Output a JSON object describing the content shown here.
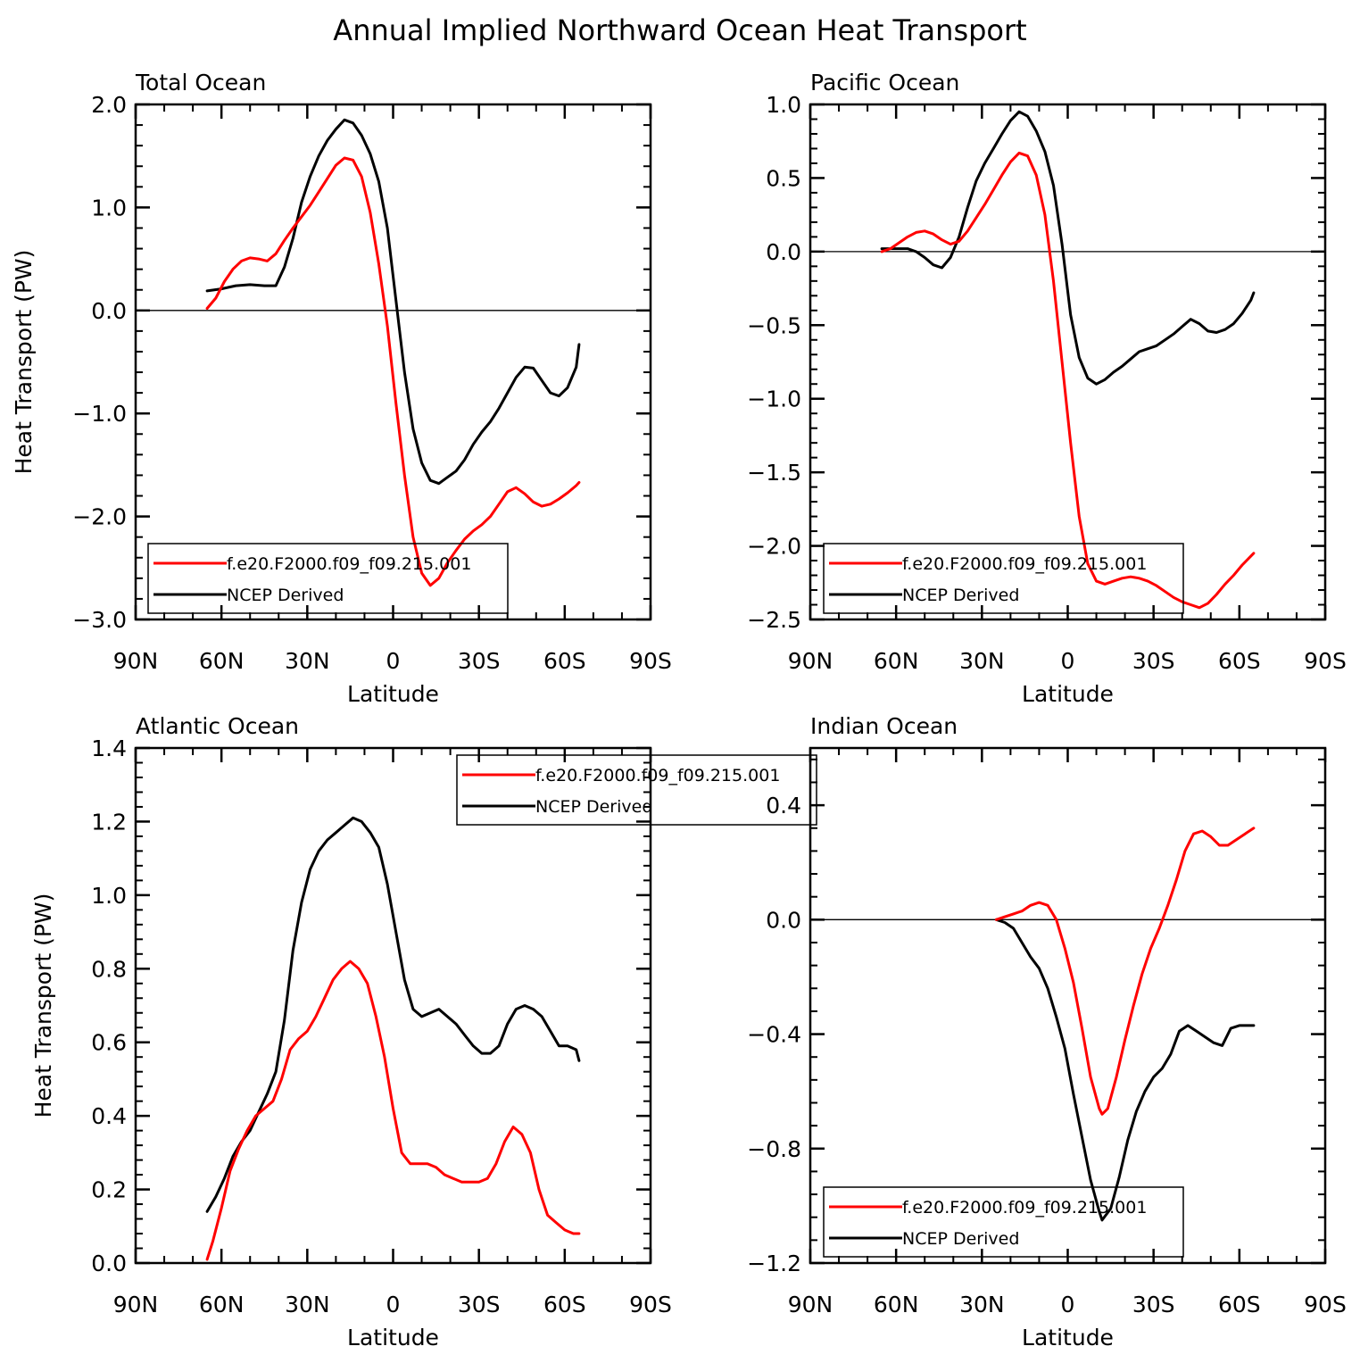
{
  "figure_title": "Annual Implied Northward Ocean Heat Transport",
  "colors": {
    "model": "#ff0000",
    "obs": "#000000",
    "axis": "#000000"
  },
  "legend_entries": [
    "f.e20.F2000.f09_f09.215.001",
    "NCEP Derived"
  ],
  "chart_data": [
    {
      "type": "line",
      "title": "Total Ocean",
      "xlabel": "Latitude",
      "ylabel": "Heat Transport (PW)",
      "xlim": [
        90,
        -90
      ],
      "ylim": [
        -3.0,
        2.0
      ],
      "x_ticks": [
        90,
        60,
        30,
        0,
        -30,
        -60,
        -90
      ],
      "x_tick_labels": [
        "90N",
        "60N",
        "30N",
        "0",
        "30S",
        "60S",
        "90S"
      ],
      "y_ticks": [
        2.0,
        1.0,
        0.0,
        -1.0,
        -2.0,
        -3.0
      ],
      "y_tick_labels": [
        "2.0",
        "1.0",
        "0.0",
        "−1.0",
        "−2.0",
        "−3.0"
      ],
      "y_minor": 0.2,
      "legend_position": "bottom-left",
      "series": [
        {
          "name": "f.e20.F2000.f09_f09.215.001",
          "color": "#ff0000",
          "x": [
            65,
            62,
            59,
            56,
            53,
            50,
            47,
            44,
            41,
            38,
            35,
            32,
            29,
            26,
            23,
            20,
            17,
            14,
            11,
            8,
            5,
            2,
            -1,
            -4,
            -7,
            -10,
            -13,
            -16,
            -19,
            -22,
            -25,
            -28,
            -31,
            -34,
            -37,
            -40,
            -43,
            -46,
            -49,
            -52,
            -55,
            -58,
            -61,
            -64,
            -65
          ],
          "y": [
            0.02,
            0.12,
            0.28,
            0.4,
            0.48,
            0.51,
            0.5,
            0.48,
            0.55,
            0.68,
            0.8,
            0.91,
            1.02,
            1.15,
            1.28,
            1.41,
            1.48,
            1.46,
            1.3,
            0.95,
            0.45,
            -0.15,
            -0.9,
            -1.6,
            -2.2,
            -2.55,
            -2.67,
            -2.6,
            -2.45,
            -2.33,
            -2.22,
            -2.14,
            -2.08,
            -2.0,
            -1.88,
            -1.76,
            -1.72,
            -1.78,
            -1.86,
            -1.9,
            -1.88,
            -1.83,
            -1.77,
            -1.7,
            -1.67
          ]
        },
        {
          "name": "NCEP Derived",
          "color": "#000000",
          "x": [
            65,
            60,
            55,
            50,
            45,
            41,
            38,
            35,
            32,
            29,
            26,
            23,
            20,
            17,
            14,
            11,
            8,
            5,
            2,
            -1,
            -4,
            -7,
            -10,
            -13,
            -16,
            -19,
            -22,
            -25,
            -28,
            -31,
            -34,
            -37,
            -40,
            -43,
            -46,
            -49,
            -52,
            -55,
            -58,
            -61,
            -64,
            -65
          ],
          "y": [
            0.19,
            0.21,
            0.24,
            0.25,
            0.24,
            0.24,
            0.42,
            0.7,
            1.05,
            1.3,
            1.5,
            1.65,
            1.76,
            1.85,
            1.82,
            1.7,
            1.52,
            1.25,
            0.8,
            0.1,
            -0.6,
            -1.15,
            -1.48,
            -1.65,
            -1.68,
            -1.62,
            -1.56,
            -1.45,
            -1.3,
            -1.18,
            -1.08,
            -0.95,
            -0.8,
            -0.65,
            -0.55,
            -0.56,
            -0.68,
            -0.8,
            -0.83,
            -0.75,
            -0.55,
            -0.33
          ]
        }
      ]
    },
    {
      "type": "line",
      "title": "Pacific Ocean",
      "xlabel": "Latitude",
      "ylabel": "",
      "xlim": [
        90,
        -90
      ],
      "ylim": [
        -2.5,
        1.0
      ],
      "x_ticks": [
        90,
        60,
        30,
        0,
        -30,
        -60,
        -90
      ],
      "x_tick_labels": [
        "90N",
        "60N",
        "30N",
        "0",
        "30S",
        "60S",
        "90S"
      ],
      "y_ticks": [
        1.0,
        0.5,
        0.0,
        -0.5,
        -1.0,
        -1.5,
        -2.0,
        -2.5
      ],
      "y_tick_labels": [
        "1.0",
        "0.5",
        "0.0",
        "−0.5",
        "−1.0",
        "−1.5",
        "−2.0",
        "−2.5"
      ],
      "y_minor": 0.1,
      "legend_position": "bottom-left",
      "series": [
        {
          "name": "f.e20.F2000.f09_f09.215.001",
          "color": "#ff0000",
          "x": [
            65,
            62,
            59,
            56,
            53,
            50,
            47,
            44,
            41,
            38,
            35,
            32,
            29,
            26,
            23,
            20,
            17,
            14,
            11,
            8,
            5,
            2,
            -1,
            -4,
            -7,
            -10,
            -13,
            -16,
            -19,
            -22,
            -25,
            -28,
            -31,
            -34,
            -37,
            -40,
            -43,
            -46,
            -49,
            -52,
            -55,
            -58,
            -61,
            -64,
            -65
          ],
          "y": [
            0.0,
            0.02,
            0.06,
            0.1,
            0.13,
            0.14,
            0.12,
            0.08,
            0.05,
            0.07,
            0.14,
            0.23,
            0.32,
            0.42,
            0.52,
            0.61,
            0.67,
            0.65,
            0.52,
            0.25,
            -0.2,
            -0.75,
            -1.3,
            -1.8,
            -2.12,
            -2.24,
            -2.26,
            -2.24,
            -2.22,
            -2.21,
            -2.22,
            -2.24,
            -2.27,
            -2.31,
            -2.35,
            -2.38,
            -2.4,
            -2.42,
            -2.39,
            -2.33,
            -2.26,
            -2.2,
            -2.13,
            -2.07,
            -2.05
          ]
        },
        {
          "name": "NCEP Derived",
          "color": "#000000",
          "x": [
            65,
            62,
            59,
            56,
            53,
            50,
            47,
            44,
            41,
            38,
            35,
            32,
            29,
            26,
            23,
            20,
            17,
            14,
            11,
            8,
            5,
            2,
            -1,
            -4,
            -7,
            -10,
            -13,
            -16,
            -19,
            -22,
            -25,
            -28,
            -31,
            -34,
            -37,
            -40,
            -43,
            -46,
            -49,
            -52,
            -55,
            -58,
            -61,
            -64,
            -65
          ],
          "y": [
            0.02,
            0.02,
            0.02,
            0.02,
            0.0,
            -0.04,
            -0.09,
            -0.11,
            -0.04,
            0.1,
            0.3,
            0.48,
            0.6,
            0.7,
            0.8,
            0.89,
            0.95,
            0.92,
            0.82,
            0.68,
            0.45,
            0.05,
            -0.43,
            -0.72,
            -0.86,
            -0.9,
            -0.87,
            -0.82,
            -0.78,
            -0.73,
            -0.68,
            -0.66,
            -0.64,
            -0.6,
            -0.56,
            -0.51,
            -0.46,
            -0.49,
            -0.54,
            -0.55,
            -0.53,
            -0.49,
            -0.42,
            -0.33,
            -0.28
          ]
        }
      ]
    },
    {
      "type": "line",
      "title": "Atlantic Ocean",
      "xlabel": "Latitude",
      "ylabel": "Heat Transport (PW)",
      "xlim": [
        90,
        -90
      ],
      "ylim": [
        0.0,
        1.4
      ],
      "x_ticks": [
        90,
        60,
        30,
        0,
        -30,
        -60,
        -90
      ],
      "x_tick_labels": [
        "90N",
        "60N",
        "30N",
        "0",
        "30S",
        "60S",
        "90S"
      ],
      "y_ticks": [
        1.4,
        1.2,
        1.0,
        0.8,
        0.6,
        0.4,
        0.2,
        0.0
      ],
      "y_tick_labels": [
        "1.4",
        "1.2",
        "1.0",
        "0.8",
        "0.6",
        "0.4",
        "0.2",
        "0.0"
      ],
      "y_minor": 0.04,
      "legend_position": "top-right",
      "series": [
        {
          "name": "f.e20.F2000.f09_f09.215.001",
          "color": "#ff0000",
          "x": [
            65,
            63,
            60,
            57,
            54,
            51,
            48,
            45,
            42,
            39,
            36,
            33,
            30,
            27,
            24,
            21,
            18,
            15,
            12,
            9,
            6,
            3,
            0,
            -3,
            -6,
            -9,
            -12,
            -15,
            -18,
            -21,
            -24,
            -27,
            -30,
            -33,
            -36,
            -39,
            -42,
            -45,
            -48,
            -51,
            -54,
            -57,
            -60,
            -63,
            -65
          ],
          "y": [
            0.01,
            0.06,
            0.15,
            0.25,
            0.31,
            0.36,
            0.4,
            0.42,
            0.44,
            0.5,
            0.58,
            0.61,
            0.63,
            0.67,
            0.72,
            0.77,
            0.8,
            0.82,
            0.8,
            0.76,
            0.67,
            0.56,
            0.42,
            0.3,
            0.27,
            0.27,
            0.27,
            0.26,
            0.24,
            0.23,
            0.22,
            0.22,
            0.22,
            0.23,
            0.27,
            0.33,
            0.37,
            0.35,
            0.3,
            0.2,
            0.13,
            0.11,
            0.09,
            0.08,
            0.08
          ]
        },
        {
          "name": "NCEP Derived",
          "color": "#000000",
          "x": [
            65,
            62,
            59,
            56,
            53,
            50,
            47,
            44,
            41,
            38,
            35,
            32,
            29,
            26,
            23,
            20,
            17,
            14,
            11,
            8,
            5,
            2,
            -1,
            -4,
            -7,
            -10,
            -13,
            -16,
            -19,
            -22,
            -25,
            -28,
            -31,
            -34,
            -37,
            -40,
            -43,
            -46,
            -49,
            -52,
            -55,
            -58,
            -61,
            -64,
            -65
          ],
          "y": [
            0.14,
            0.18,
            0.23,
            0.29,
            0.33,
            0.36,
            0.41,
            0.46,
            0.52,
            0.66,
            0.85,
            0.98,
            1.07,
            1.12,
            1.15,
            1.17,
            1.19,
            1.21,
            1.2,
            1.17,
            1.13,
            1.03,
            0.9,
            0.77,
            0.69,
            0.67,
            0.68,
            0.69,
            0.67,
            0.65,
            0.62,
            0.59,
            0.57,
            0.57,
            0.59,
            0.65,
            0.69,
            0.7,
            0.69,
            0.67,
            0.63,
            0.59,
            0.59,
            0.58,
            0.55
          ]
        }
      ]
    },
    {
      "type": "line",
      "title": "Indian Ocean",
      "xlabel": "Latitude",
      "ylabel": "",
      "xlim": [
        90,
        -90
      ],
      "ylim": [
        -1.2,
        0.6
      ],
      "x_ticks": [
        90,
        60,
        30,
        0,
        -30,
        -60,
        -90
      ],
      "x_tick_labels": [
        "90N",
        "60N",
        "30N",
        "0",
        "30S",
        "60S",
        "90S"
      ],
      "y_ticks": [
        0.4,
        0.0,
        -0.4,
        -0.8,
        -1.2
      ],
      "y_tick_labels": [
        "0.4",
        "0.0",
        "−0.4",
        "−0.8",
        "−1.2"
      ],
      "y_minor": 0.08,
      "legend_position": "bottom-left",
      "series": [
        {
          "name": "f.e20.F2000.f09_f09.215.001",
          "color": "#ff0000",
          "x": [
            25,
            22,
            19,
            16,
            13,
            10,
            7,
            4,
            1,
            -2,
            -5,
            -8,
            -11,
            -12,
            -14,
            -17,
            -20,
            -23,
            -26,
            -29,
            -32,
            -35,
            -38,
            -41,
            -44,
            -47,
            -50,
            -53,
            -56,
            -59,
            -62,
            -65
          ],
          "y": [
            0.0,
            0.01,
            0.02,
            0.03,
            0.05,
            0.06,
            0.05,
            0.0,
            -0.1,
            -0.22,
            -0.38,
            -0.55,
            -0.66,
            -0.68,
            -0.66,
            -0.55,
            -0.42,
            -0.3,
            -0.19,
            -0.1,
            -0.03,
            0.05,
            0.14,
            0.24,
            0.3,
            0.31,
            0.29,
            0.26,
            0.26,
            0.28,
            0.3,
            0.32
          ]
        },
        {
          "name": "NCEP Derived",
          "color": "#000000",
          "x": [
            25,
            22,
            19,
            16,
            13,
            10,
            7,
            4,
            1,
            -2,
            -5,
            -8,
            -11,
            -12,
            -15,
            -18,
            -21,
            -24,
            -27,
            -30,
            -33,
            -36,
            -39,
            -42,
            -45,
            -48,
            -51,
            -54,
            -57,
            -60,
            -63,
            -65
          ],
          "y": [
            0.0,
            -0.01,
            -0.03,
            -0.08,
            -0.13,
            -0.17,
            -0.24,
            -0.34,
            -0.45,
            -0.61,
            -0.76,
            -0.91,
            -1.02,
            -1.05,
            -1.01,
            -0.9,
            -0.77,
            -0.67,
            -0.6,
            -0.55,
            -0.52,
            -0.47,
            -0.39,
            -0.37,
            -0.39,
            -0.41,
            -0.43,
            -0.44,
            -0.38,
            -0.37,
            -0.37,
            -0.37
          ]
        }
      ]
    }
  ]
}
